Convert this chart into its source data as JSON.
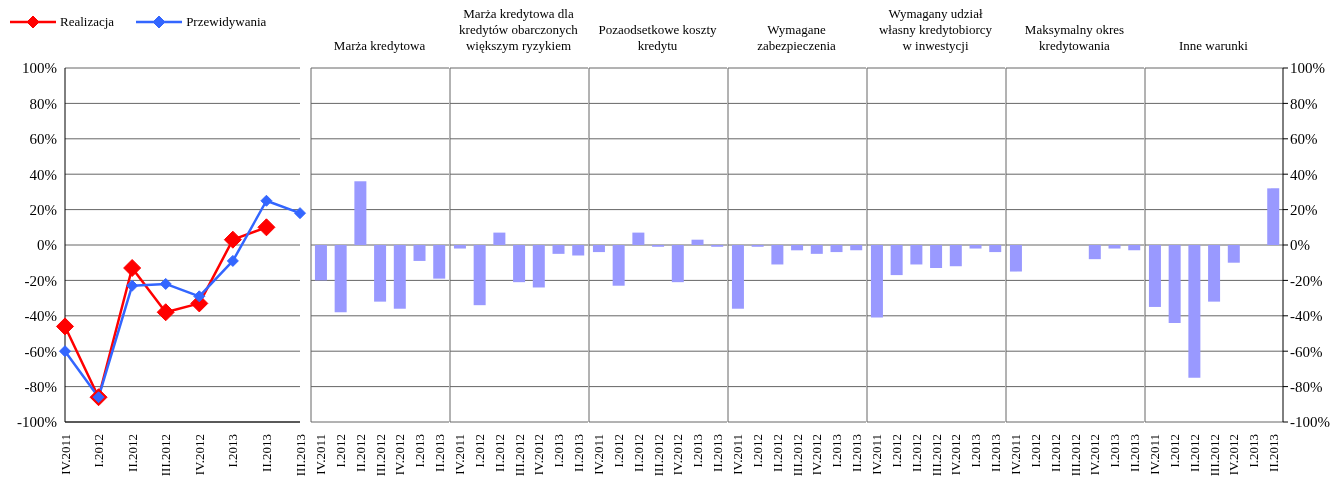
{
  "chart_data": [
    {
      "type": "line",
      "categories": [
        "IV.2011",
        "I.2012",
        "II.2012",
        "III.2012",
        "IV.2012",
        "I.2013",
        "II.2013",
        "III.2013"
      ],
      "series": [
        {
          "name": "Realizacja",
          "color": "#ff0000",
          "values": [
            -46,
            -86,
            -13,
            -38,
            -33,
            3,
            10,
            null
          ]
        },
        {
          "name": "Przewidywania",
          "color": "#3366ff",
          "values": [
            -60,
            -86,
            -23,
            -22,
            -29,
            -9,
            25,
            18
          ]
        }
      ],
      "ylim": [
        -100,
        100
      ],
      "yticks": [
        {
          "value": -100,
          "label": "-100%"
        },
        {
          "value": -80,
          "label": "-80%"
        },
        {
          "value": -60,
          "label": "-60%"
        },
        {
          "value": -40,
          "label": "-40%"
        },
        {
          "value": -20,
          "label": "-20%"
        },
        {
          "value": 0,
          "label": "0%"
        },
        {
          "value": 20,
          "label": "20%"
        },
        {
          "value": 40,
          "label": "40%"
        },
        {
          "value": 60,
          "label": "60%"
        },
        {
          "value": 80,
          "label": "80%"
        },
        {
          "value": 100,
          "label": "100%"
        }
      ],
      "grid": "y",
      "legend": "top left",
      "marker": "diamond",
      "line_style": "solid"
    },
    {
      "type": "bar",
      "title": "Marża kredytowa",
      "categories": [
        "IV.2011",
        "I.2012",
        "II.2012",
        "III.2012",
        "IV.2012",
        "I.2013",
        "II.2013"
      ],
      "values": [
        -20,
        -38,
        36,
        -32,
        -36,
        -9,
        -19
      ],
      "color": "#9999ff",
      "ylim": [
        -100,
        100
      ],
      "yticks": [
        -100,
        -80,
        -60,
        -40,
        -20,
        0,
        20,
        40,
        60,
        80,
        100
      ],
      "grid": "y",
      "tick_labels": "x"
    },
    {
      "type": "bar",
      "title": "Marża kredytowa dla kredytów obarczonych większym ryzykiem",
      "categories": [
        "IV.2011",
        "I.2012",
        "II.2012",
        "III.2012",
        "IV.2012",
        "I.2013",
        "II.2013"
      ],
      "values": [
        -2,
        -34,
        7,
        -21,
        -24,
        -5,
        -6
      ],
      "color": "#9999ff",
      "ylim": [
        -100,
        100
      ],
      "yticks": [
        -100,
        -80,
        -60,
        -40,
        -20,
        0,
        20,
        40,
        60,
        80,
        100
      ],
      "grid": "y",
      "tick_labels": "x"
    },
    {
      "type": "bar",
      "title": "Pozaodsetkowe koszty kredytu",
      "categories": [
        "IV.2011",
        "I.2012",
        "II.2012",
        "III.2012",
        "IV.2012",
        "I.2013",
        "II.2013"
      ],
      "values": [
        -4,
        -23,
        7,
        -1,
        -21,
        3,
        -1
      ],
      "color": "#9999ff",
      "ylim": [
        -100,
        100
      ],
      "yticks": [
        -100,
        -80,
        -60,
        -40,
        -20,
        0,
        20,
        40,
        60,
        80,
        100
      ],
      "grid": "y",
      "tick_labels": "x"
    },
    {
      "type": "bar",
      "title": "Wymagane zabezpieczenia",
      "categories": [
        "IV.2011",
        "I.2012",
        "II.2012",
        "III.2012",
        "IV.2012",
        "I.2013",
        "II.2013"
      ],
      "values": [
        -36,
        -1,
        -11,
        -3,
        -5,
        -4,
        -3
      ],
      "color": "#9999ff",
      "ylim": [
        -100,
        100
      ],
      "yticks": [
        -100,
        -80,
        -60,
        -40,
        -20,
        0,
        20,
        40,
        60,
        80,
        100
      ],
      "grid": "y",
      "tick_labels": "x"
    },
    {
      "type": "bar",
      "title": "Wymagany udział własny kredytobiorcy w inwestycji",
      "categories": [
        "IV.2011",
        "I.2012",
        "II.2012",
        "III.2012",
        "IV.2012",
        "I.2013",
        "II.2013"
      ],
      "values": [
        -41,
        -17,
        -11,
        -13,
        -12,
        -2,
        -4
      ],
      "color": "#9999ff",
      "ylim": [
        -100,
        100
      ],
      "yticks": [
        -100,
        -80,
        -60,
        -40,
        -20,
        0,
        20,
        40,
        60,
        80,
        100
      ],
      "grid": "y",
      "tick_labels": "x"
    },
    {
      "type": "bar",
      "title": "Maksymalny okres kredytowania",
      "categories": [
        "IV.2011",
        "I.2012",
        "II.2012",
        "III.2012",
        "IV.2012",
        "I.2013",
        "II.2013"
      ],
      "values": [
        -15,
        0,
        0,
        0,
        -8,
        -2,
        -3
      ],
      "color": "#9999ff",
      "ylim": [
        -100,
        100
      ],
      "yticks": [
        -100,
        -80,
        -60,
        -40,
        -20,
        0,
        20,
        40,
        60,
        80,
        100
      ],
      "grid": "y",
      "tick_labels": "x"
    },
    {
      "type": "bar",
      "title": "Inne warunki",
      "categories": [
        "IV.2011",
        "I.2012",
        "II.2012",
        "III.2012",
        "IV.2012",
        "I.2013",
        "II.2013"
      ],
      "values": [
        -35,
        -44,
        -75,
        -32,
        -10,
        0,
        32
      ],
      "color": "#9999ff",
      "ylim": [
        -100,
        100
      ],
      "yticks": [
        {
          "value": -100,
          "label": "-100%"
        },
        {
          "value": -80,
          "label": "-80%"
        },
        {
          "value": -60,
          "label": "-60%"
        },
        {
          "value": -40,
          "label": "-40%"
        },
        {
          "value": -20,
          "label": "-20%"
        },
        {
          "value": 0,
          "label": "0%"
        },
        {
          "value": 20,
          "label": "20%"
        },
        {
          "value": 40,
          "label": "40%"
        },
        {
          "value": 60,
          "label": "60%"
        },
        {
          "value": 80,
          "label": "80%"
        },
        {
          "value": 100,
          "label": "100%"
        }
      ],
      "grid": "y"
    }
  ]
}
